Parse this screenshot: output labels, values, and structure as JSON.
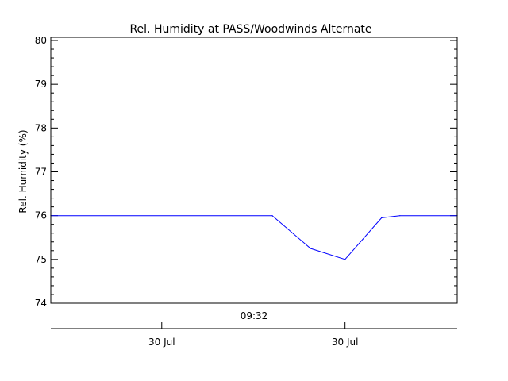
{
  "chart_data": {
    "type": "line",
    "title": "Rel. Humidity at PASS/Woodwinds Alternate",
    "ylabel": "Rel. Humidity (%)",
    "ylim": [
      74,
      80
    ],
    "y_major_ticks": [
      74,
      75,
      76,
      77,
      78,
      79,
      80
    ],
    "y_minor_step": 0.2,
    "xlim": [
      0,
      1
    ],
    "series": [
      {
        "color": "#0000ff",
        "points": [
          {
            "x": 0.0,
            "y": 76.0
          },
          {
            "x": 0.545,
            "y": 76.0
          },
          {
            "x": 0.639,
            "y": 75.25
          },
          {
            "x": 0.724,
            "y": 75.0
          },
          {
            "x": 0.814,
            "y": 75.95
          },
          {
            "x": 0.859,
            "y": 76.0
          },
          {
            "x": 1.0,
            "y": 76.0
          }
        ]
      }
    ],
    "center_time_label": "09:32",
    "date_ticks": [
      {
        "pos": 0.273,
        "label": "30 Jul"
      },
      {
        "pos": 0.724,
        "label": "30 Jul"
      }
    ],
    "grid": false
  }
}
